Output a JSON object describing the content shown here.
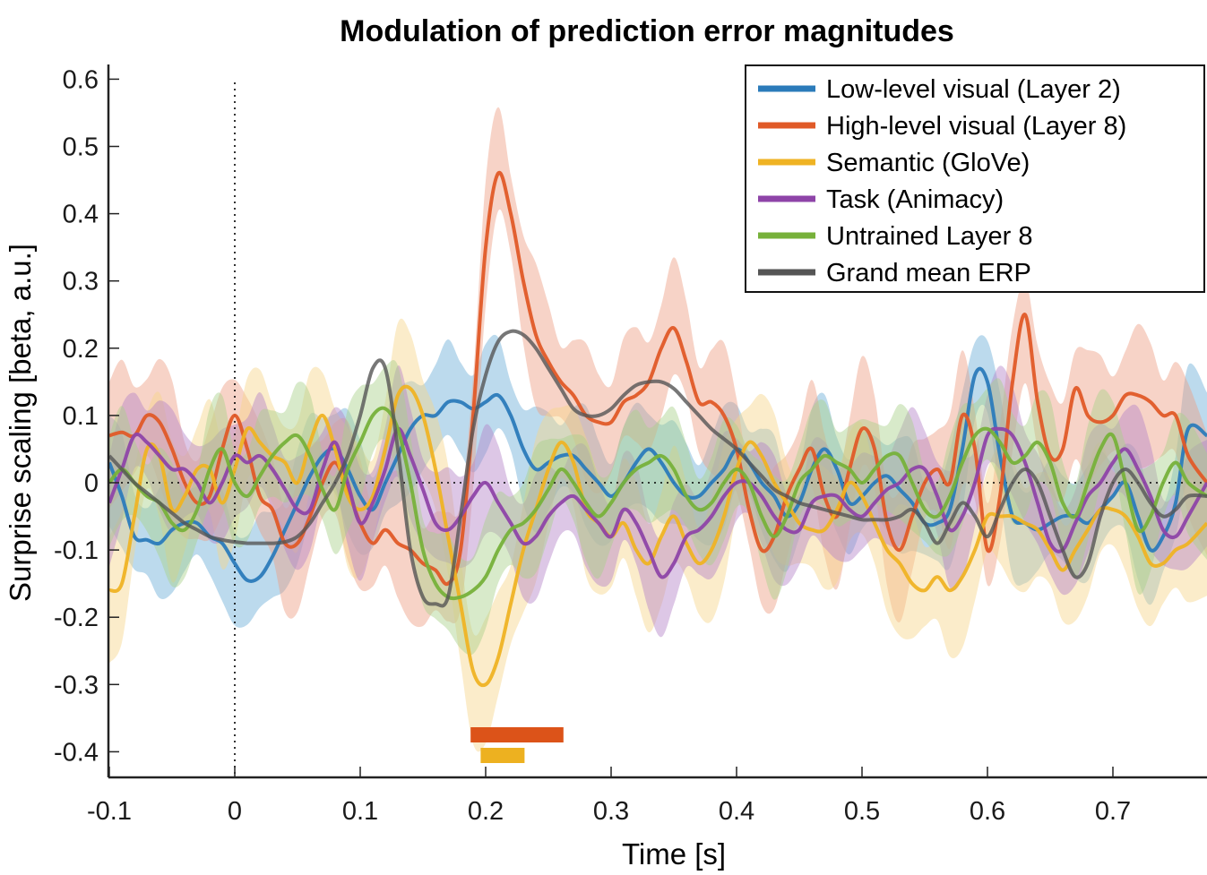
{
  "chart_data": {
    "type": "line",
    "title": "Modulation of prediction error magnitudes",
    "xlabel": "Time [s]",
    "ylabel": "Surprise scaling [beta, a.u.]",
    "xlim": [
      -0.1,
      0.775
    ],
    "ylim": [
      -0.44,
      0.62
    ],
    "xticks": [
      -0.1,
      0,
      0.1,
      0.2,
      0.3,
      0.4,
      0.5,
      0.6,
      0.7
    ],
    "xtick_labels": [
      "-0.1",
      "0",
      "0.1",
      "0.2",
      "0.3",
      "0.4",
      "0.5",
      "0.6",
      "0.7"
    ],
    "yticks": [
      0.6,
      0.5,
      0.4,
      0.3,
      0.2,
      0.1,
      0,
      -0.1,
      -0.2,
      -0.3,
      -0.4
    ],
    "ytick_labels": [
      "0.6",
      "0.5",
      "0.4",
      "0.3",
      "0.2",
      "0.1",
      "0",
      "-0.1",
      "-0.2",
      "-0.3",
      "-0.4"
    ],
    "grid": false,
    "reference_lines": {
      "vertical_at_x": 0,
      "horizontal_at_y": 0,
      "style": "dotted"
    },
    "legend_position": "top-right",
    "series": [
      {
        "name": "Low-level visual (Layer 2)",
        "color": "#2b7bba",
        "band_color": "#6baed6",
        "x": [
          -0.1,
          -0.09,
          -0.08,
          -0.07,
          -0.06,
          -0.05,
          -0.04,
          -0.03,
          -0.02,
          -0.01,
          0,
          0.01,
          0.02,
          0.03,
          0.04,
          0.05,
          0.06,
          0.07,
          0.08,
          0.09,
          0.1,
          0.11,
          0.12,
          0.13,
          0.14,
          0.15,
          0.16,
          0.17,
          0.18,
          0.19,
          0.2,
          0.21,
          0.22,
          0.23,
          0.24,
          0.25,
          0.26,
          0.27,
          0.28,
          0.29,
          0.3,
          0.31,
          0.32,
          0.33,
          0.34,
          0.35,
          0.36,
          0.37,
          0.38,
          0.39,
          0.4,
          0.41,
          0.42,
          0.43,
          0.44,
          0.45,
          0.46,
          0.47,
          0.48,
          0.49,
          0.5,
          0.51,
          0.52,
          0.53,
          0.54,
          0.55,
          0.56,
          0.57,
          0.58,
          0.59,
          0.6,
          0.61,
          0.62,
          0.63,
          0.64,
          0.65,
          0.66,
          0.67,
          0.68,
          0.69,
          0.7,
          0.71,
          0.72,
          0.73,
          0.74,
          0.75,
          0.76,
          0.775
        ],
        "y": [
          0.03,
          -0.02,
          -0.08,
          -0.085,
          -0.09,
          -0.07,
          -0.06,
          -0.06,
          -0.08,
          -0.09,
          -0.12,
          -0.145,
          -0.14,
          -0.11,
          -0.07,
          -0.03,
          0.01,
          0.04,
          0.05,
          0.02,
          -0.02,
          -0.04,
          0.0,
          0.04,
          0.08,
          0.1,
          0.1,
          0.12,
          0.12,
          0.11,
          0.12,
          0.13,
          0.1,
          0.05,
          0.02,
          0.03,
          0.04,
          0.04,
          0.02,
          0.0,
          -0.02,
          0.0,
          0.03,
          0.05,
          0.03,
          0.0,
          -0.02,
          -0.02,
          0.0,
          0.02,
          0.05,
          0.03,
          0.0,
          -0.02,
          -0.05,
          -0.03,
          0.02,
          0.05,
          0.02,
          -0.03,
          -0.02,
          0.0,
          0.01,
          -0.01,
          -0.03,
          -0.06,
          -0.06,
          -0.04,
          0.05,
          0.16,
          0.15,
          0.04,
          -0.05,
          -0.06,
          -0.07,
          -0.06,
          -0.05,
          -0.05,
          -0.06,
          -0.04,
          -0.02,
          0.0,
          -0.05,
          -0.1,
          -0.08,
          -0.03,
          0.08,
          0.07
        ],
        "band_halfwidth": 0.07
      },
      {
        "name": "High-level visual (Layer 8)",
        "color": "#e05a28",
        "band_color": "#ee9d83",
        "x": [
          -0.1,
          -0.09,
          -0.08,
          -0.07,
          -0.06,
          -0.05,
          -0.04,
          -0.03,
          -0.02,
          -0.01,
          0,
          0.01,
          0.02,
          0.03,
          0.04,
          0.05,
          0.06,
          0.07,
          0.08,
          0.09,
          0.1,
          0.11,
          0.12,
          0.13,
          0.14,
          0.15,
          0.16,
          0.17,
          0.18,
          0.19,
          0.2,
          0.21,
          0.22,
          0.23,
          0.24,
          0.25,
          0.26,
          0.27,
          0.28,
          0.29,
          0.3,
          0.31,
          0.32,
          0.33,
          0.34,
          0.35,
          0.36,
          0.37,
          0.38,
          0.39,
          0.4,
          0.41,
          0.42,
          0.43,
          0.44,
          0.45,
          0.46,
          0.47,
          0.48,
          0.49,
          0.5,
          0.51,
          0.52,
          0.53,
          0.54,
          0.55,
          0.56,
          0.57,
          0.58,
          0.59,
          0.6,
          0.61,
          0.62,
          0.63,
          0.64,
          0.65,
          0.66,
          0.67,
          0.68,
          0.69,
          0.7,
          0.71,
          0.72,
          0.73,
          0.74,
          0.75,
          0.76,
          0.775
        ],
        "y": [
          0.07,
          0.075,
          0.07,
          0.1,
          0.09,
          0.05,
          0.0,
          -0.03,
          -0.02,
          0.05,
          0.1,
          0.05,
          -0.02,
          -0.04,
          -0.09,
          -0.09,
          -0.05,
          0.0,
          0.03,
          -0.01,
          -0.06,
          -0.09,
          -0.07,
          -0.09,
          -0.1,
          -0.12,
          -0.13,
          -0.15,
          -0.1,
          0.1,
          0.35,
          0.46,
          0.4,
          0.3,
          0.22,
          0.18,
          0.15,
          0.13,
          0.1,
          0.09,
          0.09,
          0.12,
          0.13,
          0.15,
          0.2,
          0.23,
          0.18,
          0.12,
          0.12,
          0.1,
          0.05,
          -0.04,
          -0.1,
          -0.08,
          -0.02,
          0.02,
          0.05,
          -0.02,
          -0.05,
          0.02,
          0.08,
          0.05,
          -0.06,
          -0.1,
          -0.05,
          0.0,
          0.02,
          0.0,
          0.1,
          0.05,
          -0.1,
          -0.02,
          0.15,
          0.25,
          0.12,
          0.04,
          0.05,
          0.14,
          0.1,
          0.09,
          0.1,
          0.13,
          0.13,
          0.12,
          0.1,
          0.1,
          0.04,
          0.0
        ],
        "band_halfwidth": 0.08
      },
      {
        "name": "Semantic (GloVe)",
        "color": "#efb324",
        "band_color": "#f7d48a",
        "x": [
          -0.1,
          -0.09,
          -0.08,
          -0.07,
          -0.06,
          -0.05,
          -0.04,
          -0.03,
          -0.02,
          -0.01,
          0,
          0.01,
          0.02,
          0.03,
          0.04,
          0.05,
          0.06,
          0.07,
          0.08,
          0.09,
          0.1,
          0.11,
          0.12,
          0.13,
          0.14,
          0.15,
          0.16,
          0.17,
          0.18,
          0.19,
          0.2,
          0.21,
          0.22,
          0.23,
          0.24,
          0.25,
          0.26,
          0.27,
          0.28,
          0.29,
          0.3,
          0.31,
          0.32,
          0.33,
          0.34,
          0.35,
          0.36,
          0.37,
          0.38,
          0.39,
          0.4,
          0.41,
          0.42,
          0.43,
          0.44,
          0.45,
          0.46,
          0.47,
          0.48,
          0.49,
          0.5,
          0.51,
          0.52,
          0.53,
          0.54,
          0.55,
          0.56,
          0.57,
          0.58,
          0.59,
          0.6,
          0.61,
          0.62,
          0.63,
          0.64,
          0.65,
          0.66,
          0.67,
          0.68,
          0.69,
          0.7,
          0.71,
          0.72,
          0.73,
          0.74,
          0.75,
          0.76,
          0.775
        ],
        "y": [
          -0.16,
          -0.15,
          -0.05,
          0.05,
          0.04,
          -0.04,
          -0.02,
          0.02,
          0.02,
          -0.03,
          0.02,
          0.08,
          0.06,
          0.04,
          0.03,
          0.0,
          0.06,
          0.1,
          0.05,
          -0.02,
          -0.04,
          -0.02,
          0.05,
          0.13,
          0.14,
          0.1,
          0.02,
          -0.08,
          -0.18,
          -0.28,
          -0.3,
          -0.26,
          -0.18,
          -0.1,
          -0.04,
          0.02,
          0.06,
          0.03,
          -0.04,
          -0.06,
          -0.08,
          -0.06,
          -0.1,
          -0.12,
          -0.08,
          -0.05,
          -0.09,
          -0.12,
          -0.1,
          -0.05,
          0.02,
          0.06,
          0.04,
          0.0,
          -0.03,
          -0.06,
          -0.07,
          -0.07,
          -0.04,
          0.0,
          -0.02,
          -0.06,
          -0.1,
          -0.12,
          -0.15,
          -0.16,
          -0.14,
          -0.16,
          -0.14,
          -0.1,
          -0.05,
          -0.05,
          -0.05,
          -0.06,
          -0.07,
          -0.1,
          -0.13,
          -0.1,
          -0.07,
          -0.04,
          -0.04,
          -0.05,
          -0.08,
          -0.12,
          -0.12,
          -0.1,
          -0.09,
          -0.06
        ],
        "band_halfwidth": 0.08
      },
      {
        "name": "Task (Animacy)",
        "color": "#8e44a8",
        "band_color": "#b483c8",
        "x": [
          -0.1,
          -0.09,
          -0.08,
          -0.07,
          -0.06,
          -0.05,
          -0.04,
          -0.03,
          -0.02,
          -0.01,
          0,
          0.01,
          0.02,
          0.03,
          0.04,
          0.05,
          0.06,
          0.07,
          0.08,
          0.09,
          0.1,
          0.11,
          0.12,
          0.13,
          0.14,
          0.15,
          0.16,
          0.17,
          0.18,
          0.19,
          0.2,
          0.21,
          0.22,
          0.23,
          0.24,
          0.25,
          0.26,
          0.27,
          0.28,
          0.29,
          0.3,
          0.31,
          0.32,
          0.33,
          0.34,
          0.35,
          0.36,
          0.37,
          0.38,
          0.39,
          0.4,
          0.41,
          0.42,
          0.43,
          0.44,
          0.45,
          0.46,
          0.47,
          0.48,
          0.49,
          0.5,
          0.51,
          0.52,
          0.53,
          0.54,
          0.55,
          0.56,
          0.57,
          0.58,
          0.59,
          0.6,
          0.61,
          0.62,
          0.63,
          0.64,
          0.65,
          0.66,
          0.67,
          0.68,
          0.69,
          0.7,
          0.71,
          0.72,
          0.73,
          0.74,
          0.75,
          0.76,
          0.775
        ],
        "y": [
          -0.03,
          0.02,
          0.07,
          0.06,
          0.04,
          0.02,
          0.02,
          0.0,
          -0.03,
          0.0,
          0.04,
          0.03,
          0.04,
          0.02,
          -0.01,
          -0.04,
          -0.04,
          0.02,
          0.06,
          0.0,
          -0.06,
          -0.03,
          0.02,
          0.08,
          0.04,
          -0.01,
          -0.06,
          -0.07,
          -0.05,
          -0.02,
          0.0,
          -0.03,
          -0.06,
          -0.09,
          -0.08,
          -0.05,
          -0.03,
          -0.02,
          -0.04,
          -0.06,
          -0.08,
          -0.04,
          -0.06,
          -0.1,
          -0.14,
          -0.12,
          -0.08,
          -0.07,
          -0.05,
          -0.02,
          0.0,
          0.0,
          -0.02,
          -0.05,
          -0.07,
          -0.07,
          -0.03,
          -0.02,
          -0.02,
          -0.04,
          -0.05,
          -0.03,
          -0.01,
          0.0,
          0.02,
          0.02,
          -0.02,
          -0.07,
          -0.05,
          0.0,
          0.07,
          0.08,
          0.07,
          0.03,
          -0.03,
          -0.09,
          -0.1,
          -0.06,
          -0.02,
          0.0,
          0.03,
          0.05,
          0.02,
          -0.02,
          -0.07,
          -0.08,
          -0.05,
          0.0
        ],
        "band_halfwidth": 0.07
      },
      {
        "name": "Untrained Layer 8",
        "color": "#77b13a",
        "band_color": "#a9d08a",
        "x": [
          -0.1,
          -0.09,
          -0.08,
          -0.07,
          -0.06,
          -0.05,
          -0.04,
          -0.03,
          -0.02,
          -0.01,
          0,
          0.01,
          0.02,
          0.03,
          0.04,
          0.05,
          0.06,
          0.07,
          0.08,
          0.09,
          0.1,
          0.11,
          0.12,
          0.13,
          0.14,
          0.15,
          0.16,
          0.17,
          0.18,
          0.19,
          0.2,
          0.21,
          0.22,
          0.23,
          0.24,
          0.25,
          0.26,
          0.27,
          0.28,
          0.29,
          0.3,
          0.31,
          0.32,
          0.33,
          0.34,
          0.35,
          0.36,
          0.37,
          0.38,
          0.39,
          0.4,
          0.41,
          0.42,
          0.43,
          0.44,
          0.45,
          0.46,
          0.47,
          0.48,
          0.49,
          0.5,
          0.51,
          0.52,
          0.53,
          0.54,
          0.55,
          0.56,
          0.57,
          0.58,
          0.59,
          0.6,
          0.61,
          0.62,
          0.63,
          0.64,
          0.65,
          0.66,
          0.67,
          0.68,
          0.69,
          0.7,
          0.71,
          0.72,
          0.73,
          0.74,
          0.75,
          0.76,
          0.775
        ],
        "y": [
          0.0,
          0.02,
          0.0,
          -0.02,
          -0.03,
          -0.06,
          -0.07,
          -0.04,
          0.02,
          0.05,
          0.0,
          -0.02,
          0.01,
          0.04,
          0.06,
          0.07,
          0.04,
          -0.01,
          -0.04,
          0.02,
          0.06,
          0.1,
          0.11,
          0.08,
          0.0,
          -0.1,
          -0.15,
          -0.17,
          -0.17,
          -0.16,
          -0.14,
          -0.1,
          -0.07,
          -0.06,
          -0.04,
          -0.01,
          0.02,
          0.0,
          -0.03,
          -0.05,
          -0.03,
          0.0,
          0.02,
          0.03,
          0.04,
          0.02,
          -0.02,
          -0.04,
          -0.03,
          0.0,
          0.02,
          0.0,
          -0.05,
          -0.08,
          -0.05,
          0.0,
          0.02,
          0.04,
          0.03,
          0.02,
          0.0,
          0.02,
          0.04,
          0.04,
          0.0,
          -0.04,
          -0.05,
          -0.02,
          0.03,
          0.07,
          0.08,
          0.06,
          0.03,
          0.04,
          0.06,
          0.03,
          -0.03,
          -0.05,
          0.0,
          0.05,
          0.07,
          0.0,
          -0.07,
          -0.05,
          0.0,
          0.03,
          0.0,
          -0.02
        ],
        "band_halfwidth": 0.07
      },
      {
        "name": "Grand mean ERP",
        "color": "#555555",
        "band_color": "#888888",
        "x": [
          -0.1,
          -0.09,
          -0.08,
          -0.07,
          -0.06,
          -0.05,
          -0.04,
          -0.03,
          -0.02,
          -0.01,
          0,
          0.01,
          0.02,
          0.03,
          0.04,
          0.05,
          0.06,
          0.07,
          0.08,
          0.09,
          0.1,
          0.11,
          0.12,
          0.13,
          0.14,
          0.15,
          0.16,
          0.17,
          0.18,
          0.19,
          0.2,
          0.21,
          0.22,
          0.23,
          0.24,
          0.25,
          0.26,
          0.27,
          0.28,
          0.29,
          0.3,
          0.31,
          0.32,
          0.33,
          0.34,
          0.35,
          0.36,
          0.37,
          0.38,
          0.39,
          0.4,
          0.41,
          0.42,
          0.43,
          0.44,
          0.45,
          0.46,
          0.47,
          0.48,
          0.49,
          0.5,
          0.51,
          0.52,
          0.53,
          0.54,
          0.55,
          0.56,
          0.57,
          0.58,
          0.59,
          0.6,
          0.61,
          0.62,
          0.63,
          0.64,
          0.65,
          0.66,
          0.67,
          0.68,
          0.69,
          0.7,
          0.71,
          0.72,
          0.73,
          0.74,
          0.75,
          0.76,
          0.775
        ],
        "y": [
          0.04,
          0.02,
          0.0,
          -0.015,
          -0.03,
          -0.045,
          -0.06,
          -0.07,
          -0.08,
          -0.085,
          -0.088,
          -0.09,
          -0.09,
          -0.09,
          -0.088,
          -0.08,
          -0.06,
          -0.03,
          0.0,
          0.04,
          0.1,
          0.17,
          0.17,
          0.05,
          -0.1,
          -0.17,
          -0.18,
          -0.17,
          -0.05,
          0.08,
          0.16,
          0.21,
          0.225,
          0.22,
          0.2,
          0.17,
          0.14,
          0.11,
          0.1,
          0.1,
          0.11,
          0.13,
          0.145,
          0.15,
          0.15,
          0.14,
          0.12,
          0.1,
          0.08,
          0.065,
          0.05,
          0.03,
          0.01,
          -0.01,
          -0.02,
          -0.03,
          -0.035,
          -0.04,
          -0.045,
          -0.05,
          -0.055,
          -0.055,
          -0.055,
          -0.05,
          -0.04,
          -0.06,
          -0.09,
          -0.06,
          -0.03,
          -0.05,
          -0.08,
          -0.04,
          0.0,
          0.02,
          0.0,
          -0.05,
          -0.1,
          -0.14,
          -0.12,
          -0.05,
          0.0,
          0.02,
          0.0,
          -0.03,
          -0.05,
          -0.04,
          -0.02,
          -0.02
        ],
        "band_halfwidth": 0.0
      }
    ],
    "significance_bars": [
      {
        "series": "High-level visual (Layer 8)",
        "color": "#dc5319",
        "x_start": 0.188,
        "x_end": 0.262
      },
      {
        "series": "Semantic (GloVe)",
        "color": "#edb120",
        "x_start": 0.196,
        "x_end": 0.231
      }
    ]
  }
}
